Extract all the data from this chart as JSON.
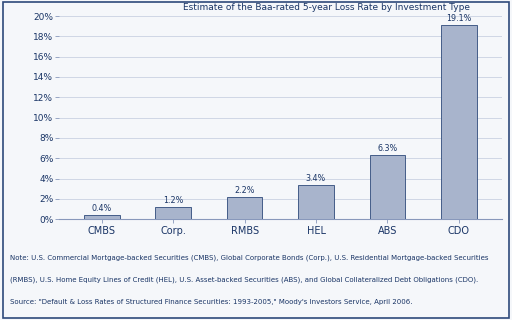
{
  "categories": [
    "CMBS",
    "Corp.",
    "RMBS",
    "HEL",
    "ABS",
    "CDO"
  ],
  "values": [
    0.4,
    1.2,
    2.2,
    3.4,
    6.3,
    19.1
  ],
  "bar_color": "#a8b4cc",
  "bar_edge_color": "#2e4a7a",
  "title": "Estimate of the Baa-rated 5-year Loss Rate by Investment Type",
  "title_color": "#1a3566",
  "title_fontsize": 6.5,
  "ylim": [
    0,
    20
  ],
  "yticks": [
    0,
    2,
    4,
    6,
    8,
    10,
    12,
    14,
    16,
    18,
    20
  ],
  "ytick_labels": [
    "0%",
    "2%",
    "4%",
    "6%",
    "8%",
    "10%",
    "12%",
    "14%",
    "16%",
    "18%",
    "20%"
  ],
  "label_color": "#1a3566",
  "axis_color": "#8898bb",
  "background_color": "#f5f7fa",
  "border_color": "#2e4a7a",
  "note_line1": "Note: U.S. Commercial Mortgage-backed Securities (CMBS), Global Corporate Bonds (Corp.), U.S. Residential Mortgage-backed Securities",
  "note_line2": "(RMBS), U.S. Home Equity Lines of Credit (HEL), U.S. Asset-backed Securities (ABS), and Global Collateralized Debt Obligations (CDO).",
  "note_line3": "Source: \"Default & Loss Rates of Structured Finance Securities: 1993-2005,\" Moody's Investors Service, April 2006.",
  "note_fontsize": 5.0,
  "bar_width": 0.5,
  "value_labels": [
    "0.4%",
    "1.2%",
    "2.2%",
    "3.4%",
    "6.3%",
    "19.1%"
  ],
  "tick_color": "#8898bb",
  "xtick_fontsize": 7.0,
  "ytick_fontsize": 6.5
}
